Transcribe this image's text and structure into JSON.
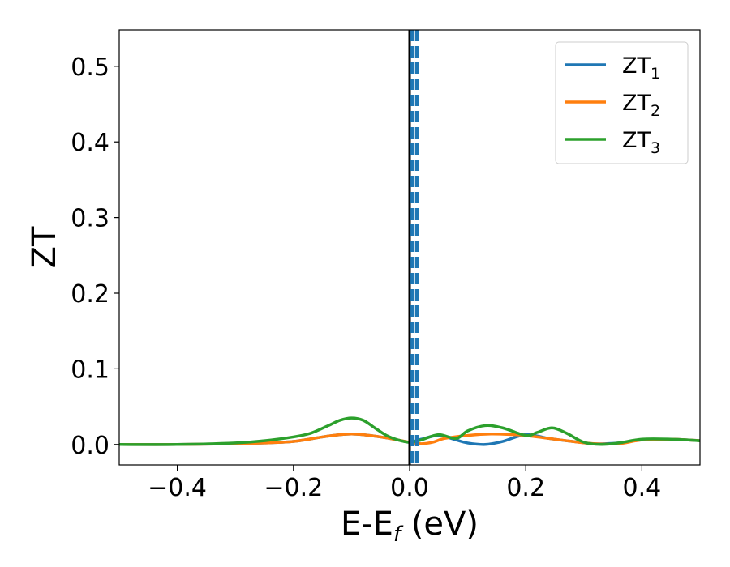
{
  "chart_data": {
    "type": "line",
    "title": "",
    "xlabel": {
      "main": "E-E",
      "sub": "f",
      "suffix": " (eV)"
    },
    "ylabel": "ZT",
    "xlim": [
      -0.5,
      0.5
    ],
    "ylim": [
      -0.027,
      0.548
    ],
    "xticks": [
      -0.4,
      -0.2,
      0.0,
      0.2,
      0.4
    ],
    "xtick_labels": [
      "−0.4",
      "−0.2",
      "0.0",
      "0.2",
      "0.4"
    ],
    "yticks": [
      0.0,
      0.1,
      0.2,
      0.3,
      0.4,
      0.5
    ],
    "ytick_labels": [
      "0.0",
      "0.1",
      "0.2",
      "0.3",
      "0.4",
      "0.5"
    ],
    "grid": false,
    "legend_position": "top-right",
    "vertical_lines": [
      {
        "x": 0.0,
        "style": "solid",
        "color": "#000000"
      },
      {
        "x": 0.005,
        "style": "dashed",
        "color": "#1f77b4"
      },
      {
        "x": 0.013,
        "style": "dashed",
        "color": "#1f77b4"
      }
    ],
    "series": [
      {
        "name": "ZT1",
        "label_main": "ZT",
        "label_sub": "1",
        "color": "#1f77b4",
        "x": [
          -0.5,
          -0.4,
          -0.3,
          -0.25,
          -0.2,
          -0.15,
          -0.12,
          -0.1,
          -0.08,
          -0.05,
          -0.02,
          0.0,
          0.02,
          0.05,
          0.08,
          0.1,
          0.13,
          0.16,
          0.2,
          0.24,
          0.28,
          0.32,
          0.36,
          0.4,
          0.45,
          0.5
        ],
        "y": [
          0.0,
          0.0,
          0.001,
          0.002,
          0.004,
          0.01,
          0.013,
          0.014,
          0.013,
          0.01,
          0.006,
          0.003,
          0.007,
          0.012,
          0.006,
          0.002,
          0.0,
          0.004,
          0.013,
          0.008,
          0.004,
          0.001,
          0.002,
          0.006,
          0.007,
          0.005
        ]
      },
      {
        "name": "ZT2",
        "label_main": "ZT",
        "label_sub": "2",
        "color": "#ff7f0e",
        "x": [
          -0.5,
          -0.4,
          -0.3,
          -0.25,
          -0.2,
          -0.15,
          -0.12,
          -0.1,
          -0.08,
          -0.05,
          -0.02,
          0.0,
          0.02,
          0.04,
          0.06,
          0.1,
          0.14,
          0.18,
          0.2,
          0.24,
          0.28,
          0.32,
          0.36,
          0.4,
          0.45,
          0.5
        ],
        "y": [
          0.0,
          0.0,
          0.001,
          0.002,
          0.004,
          0.01,
          0.013,
          0.014,
          0.013,
          0.01,
          0.006,
          0.003,
          0.001,
          0.003,
          0.008,
          0.012,
          0.014,
          0.013,
          0.012,
          0.008,
          0.004,
          0.001,
          0.001,
          0.006,
          0.007,
          0.005
        ]
      },
      {
        "name": "ZT3",
        "label_main": "ZT",
        "label_sub": "3",
        "color": "#2ca02c",
        "x": [
          -0.5,
          -0.4,
          -0.3,
          -0.25,
          -0.2,
          -0.17,
          -0.14,
          -0.12,
          -0.1,
          -0.08,
          -0.06,
          -0.04,
          -0.02,
          0.0,
          0.02,
          0.05,
          0.08,
          0.1,
          0.13,
          0.16,
          0.2,
          0.22,
          0.245,
          0.27,
          0.3,
          0.33,
          0.36,
          0.4,
          0.45,
          0.5
        ],
        "y": [
          0.0,
          0.0,
          0.002,
          0.005,
          0.01,
          0.015,
          0.025,
          0.032,
          0.035,
          0.032,
          0.022,
          0.012,
          0.006,
          0.003,
          0.006,
          0.013,
          0.008,
          0.018,
          0.025,
          0.022,
          0.012,
          0.016,
          0.022,
          0.015,
          0.003,
          0.0,
          0.002,
          0.007,
          0.007,
          0.005
        ]
      }
    ]
  }
}
